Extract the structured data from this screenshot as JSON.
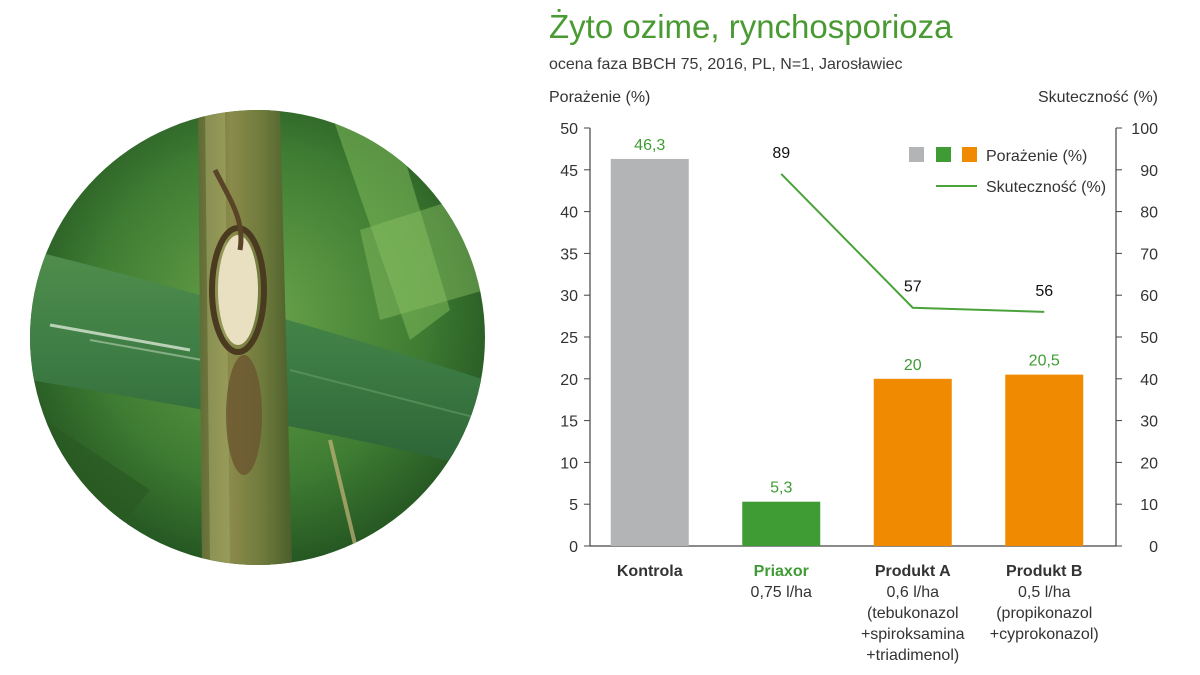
{
  "title": "Żyto ozime, rynchosporioza",
  "subtitle": "ocena faza BBCH 75, 2016, PL, N=1, Jarosławiec",
  "colors": {
    "title": "#4a9a33",
    "kontrola": "#b3b4b6",
    "priaxor": "#3f9c35",
    "produkt": "#f08a00",
    "line": "#4aa33a",
    "axis": "#444444",
    "text": "#333333"
  },
  "chart_data": {
    "type": "bar",
    "ylabel_left": "Porażenie (%)",
    "ylabel_right": "Skuteczność (%)",
    "ylim_left": [
      0,
      50
    ],
    "ylim_right": [
      0,
      100
    ],
    "yticks_left": [
      "0",
      "5",
      "10",
      "15",
      "20",
      "25",
      "30",
      "35",
      "40",
      "45",
      "50"
    ],
    "yticks_right": [
      "0",
      "10",
      "20",
      "30",
      "40",
      "50",
      "60",
      "70",
      "80",
      "90",
      "100"
    ],
    "categories": [
      {
        "name": "Kontrola",
        "details": [],
        "color_key": "kontrola",
        "name_color_key": "text"
      },
      {
        "name": "Priaxor",
        "details": [
          "0,75 l/ha"
        ],
        "color_key": "priaxor",
        "name_color_key": "priaxor"
      },
      {
        "name": "Produkt A",
        "details": [
          "0,6 l/ha",
          "(tebukonazol",
          "+spiroksamina",
          "+triadimenol)"
        ],
        "color_key": "produkt",
        "name_color_key": "text"
      },
      {
        "name": "Produkt B",
        "details": [
          "0,5 l/ha",
          "(propikonazol",
          "+cyprokonazol)"
        ],
        "color_key": "produkt",
        "name_color_key": "text"
      }
    ],
    "series": [
      {
        "name": "Porażenie (%)",
        "type": "bar",
        "axis": "left",
        "values": [
          46.3,
          5.3,
          20,
          20.5
        ],
        "labels": [
          "46,3",
          "5,3",
          "20",
          "20,5"
        ]
      },
      {
        "name": "Skuteczność (%)",
        "type": "line",
        "axis": "right",
        "values": [
          null,
          89,
          57,
          56
        ],
        "labels": [
          "",
          "89",
          "57",
          "56"
        ]
      }
    ],
    "legend": {
      "position": "top-right",
      "bar_label": "Porażenie (%)",
      "line_label": "Skuteczność (%)"
    },
    "grid": false
  }
}
